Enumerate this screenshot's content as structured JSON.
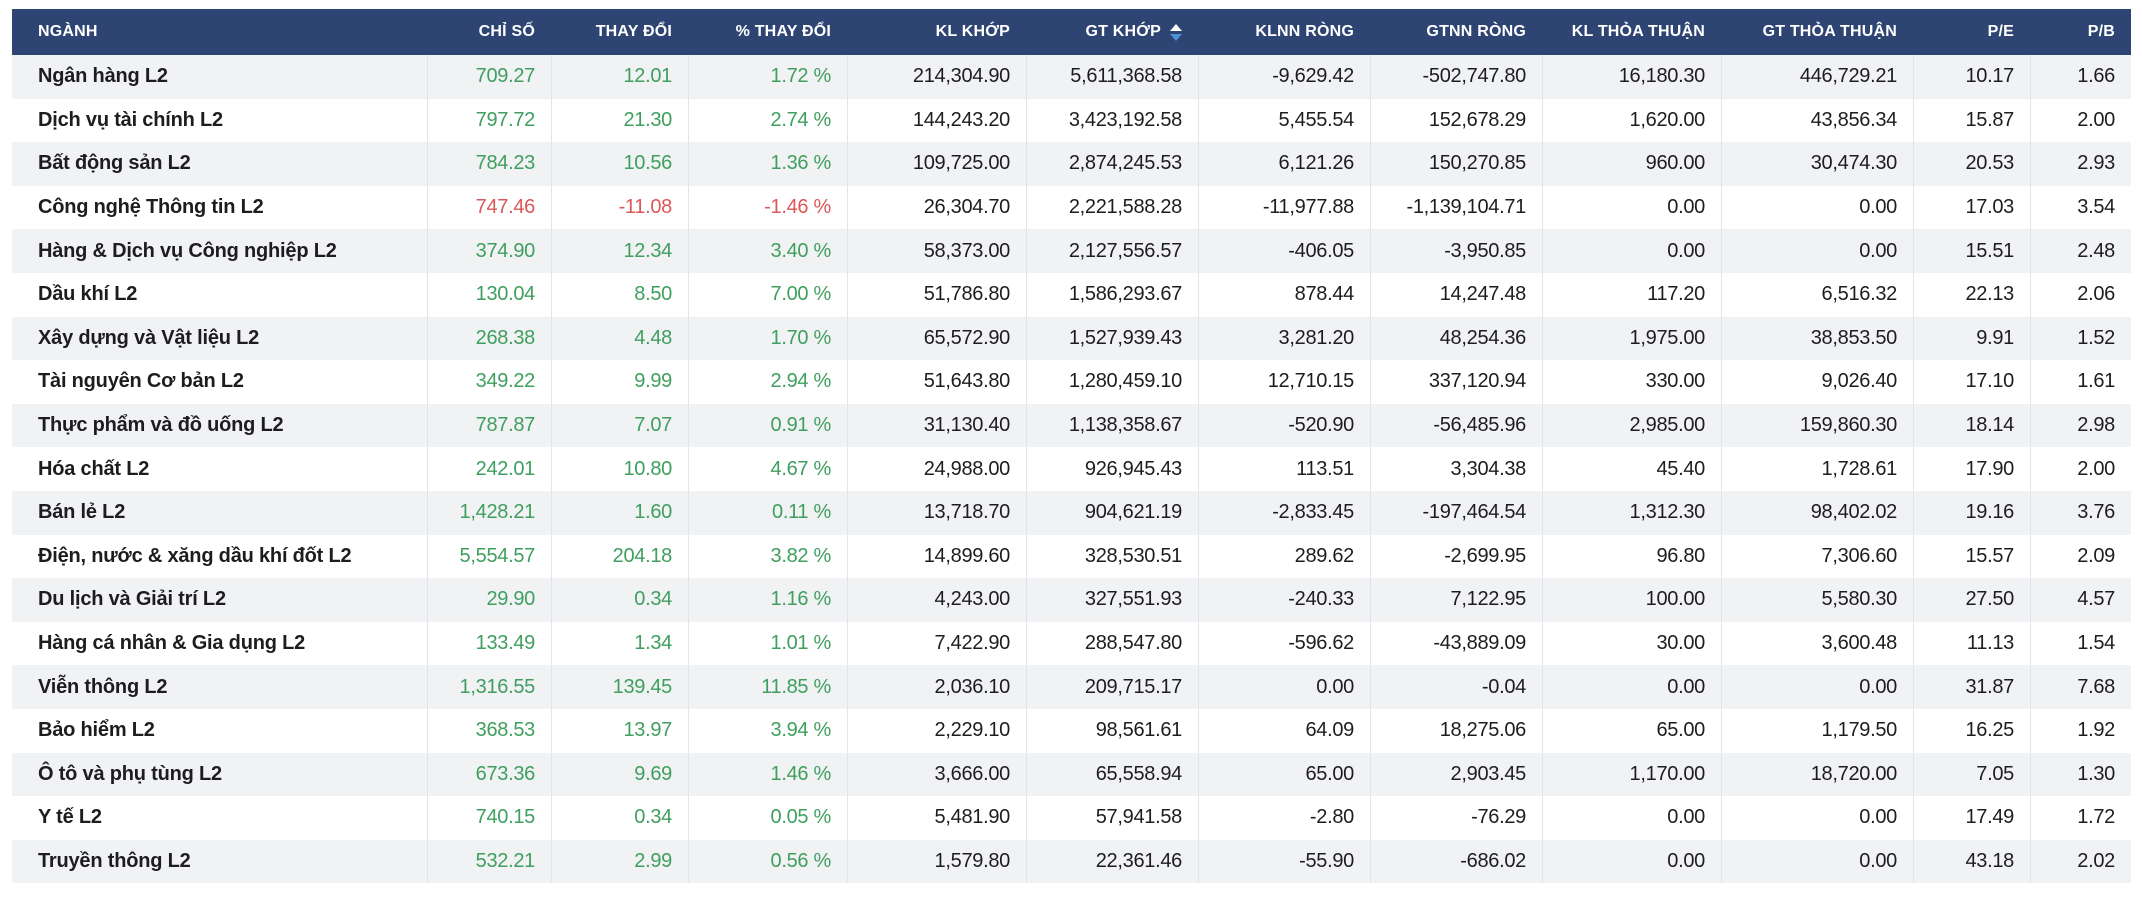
{
  "colors": {
    "header_bg": "#2e4573",
    "header_text": "#ffffff",
    "positive": "#3f9f5e",
    "negative": "#dc5858",
    "stripe": "#f1f2f4",
    "separator": "#e3e4e8",
    "text": "#1d1d1f",
    "sort_active": "#4f8fd6",
    "sort_inactive": "#ffffff"
  },
  "sort": {
    "column": "GT KHỚP",
    "direction": "desc",
    "icon": "sort-arrows-icon"
  },
  "table": {
    "columns": [
      {
        "key": "nganh",
        "label": "NGÀNH",
        "align": "left"
      },
      {
        "key": "chi_so",
        "label": "CHỈ SỐ",
        "align": "right"
      },
      {
        "key": "thay_doi",
        "label": "THAY ĐỔI",
        "align": "right"
      },
      {
        "key": "pct_thay_doi",
        "label": "% THAY ĐỔI",
        "align": "right"
      },
      {
        "key": "kl_khop",
        "label": "KL KHỚP",
        "align": "right"
      },
      {
        "key": "gt_khop",
        "label": "GT KHỚP",
        "align": "right",
        "sorted": "desc"
      },
      {
        "key": "klnn_rong",
        "label": "KLNN RÒNG",
        "align": "right"
      },
      {
        "key": "gtnn_rong",
        "label": "GTNN RÒNG",
        "align": "right"
      },
      {
        "key": "kl_thoa_thuan",
        "label": "KL THỎA THUẬN",
        "align": "right"
      },
      {
        "key": "gt_thoa_thuan",
        "label": "GT THỎA THUẬN",
        "align": "right"
      },
      {
        "key": "pe",
        "label": "P/E",
        "align": "right"
      },
      {
        "key": "pb",
        "label": "P/B",
        "align": "right"
      }
    ],
    "rows": [
      {
        "trend": "up",
        "cells": [
          "Ngân hàng L2",
          "709.27",
          "12.01",
          "1.72 %",
          "214,304.90",
          "5,611,368.58",
          "-9,629.42",
          "-502,747.80",
          "16,180.30",
          "446,729.21",
          "10.17",
          "1.66"
        ]
      },
      {
        "trend": "up",
        "cells": [
          "Dịch vụ tài chính L2",
          "797.72",
          "21.30",
          "2.74 %",
          "144,243.20",
          "3,423,192.58",
          "5,455.54",
          "152,678.29",
          "1,620.00",
          "43,856.34",
          "15.87",
          "2.00"
        ]
      },
      {
        "trend": "up",
        "cells": [
          "Bất động sản L2",
          "784.23",
          "10.56",
          "1.36 %",
          "109,725.00",
          "2,874,245.53",
          "6,121.26",
          "150,270.85",
          "960.00",
          "30,474.30",
          "20.53",
          "2.93"
        ]
      },
      {
        "trend": "down",
        "cells": [
          "Công nghệ Thông tin L2",
          "747.46",
          "-11.08",
          "-1.46 %",
          "26,304.70",
          "2,221,588.28",
          "-11,977.88",
          "-1,139,104.71",
          "0.00",
          "0.00",
          "17.03",
          "3.54"
        ]
      },
      {
        "trend": "up",
        "cells": [
          "Hàng & Dịch vụ Công nghiệp L2",
          "374.90",
          "12.34",
          "3.40 %",
          "58,373.00",
          "2,127,556.57",
          "-406.05",
          "-3,950.85",
          "0.00",
          "0.00",
          "15.51",
          "2.48"
        ]
      },
      {
        "trend": "up",
        "cells": [
          "Dầu khí L2",
          "130.04",
          "8.50",
          "7.00 %",
          "51,786.80",
          "1,586,293.67",
          "878.44",
          "14,247.48",
          "117.20",
          "6,516.32",
          "22.13",
          "2.06"
        ]
      },
      {
        "trend": "up",
        "cells": [
          "Xây dựng và Vật liệu L2",
          "268.38",
          "4.48",
          "1.70 %",
          "65,572.90",
          "1,527,939.43",
          "3,281.20",
          "48,254.36",
          "1,975.00",
          "38,853.50",
          "9.91",
          "1.52"
        ]
      },
      {
        "trend": "up",
        "cells": [
          "Tài nguyên Cơ bản L2",
          "349.22",
          "9.99",
          "2.94 %",
          "51,643.80",
          "1,280,459.10",
          "12,710.15",
          "337,120.94",
          "330.00",
          "9,026.40",
          "17.10",
          "1.61"
        ]
      },
      {
        "trend": "up",
        "cells": [
          "Thực phẩm và đồ uống L2",
          "787.87",
          "7.07",
          "0.91 %",
          "31,130.40",
          "1,138,358.67",
          "-520.90",
          "-56,485.96",
          "2,985.00",
          "159,860.30",
          "18.14",
          "2.98"
        ]
      },
      {
        "trend": "up",
        "cells": [
          "Hóa chất L2",
          "242.01",
          "10.80",
          "4.67 %",
          "24,988.00",
          "926,945.43",
          "113.51",
          "3,304.38",
          "45.40",
          "1,728.61",
          "17.90",
          "2.00"
        ]
      },
      {
        "trend": "up",
        "cells": [
          "Bán lẻ L2",
          "1,428.21",
          "1.60",
          "0.11 %",
          "13,718.70",
          "904,621.19",
          "-2,833.45",
          "-197,464.54",
          "1,312.30",
          "98,402.02",
          "19.16",
          "3.76"
        ]
      },
      {
        "trend": "up",
        "cells": [
          "Điện, nước & xăng dầu khí đốt L2",
          "5,554.57",
          "204.18",
          "3.82 %",
          "14,899.60",
          "328,530.51",
          "289.62",
          "-2,699.95",
          "96.80",
          "7,306.60",
          "15.57",
          "2.09"
        ]
      },
      {
        "trend": "up",
        "cells": [
          "Du lịch và Giải trí L2",
          "29.90",
          "0.34",
          "1.16 %",
          "4,243.00",
          "327,551.93",
          "-240.33",
          "7,122.95",
          "100.00",
          "5,580.30",
          "27.50",
          "4.57"
        ]
      },
      {
        "trend": "up",
        "cells": [
          "Hàng cá nhân & Gia dụng L2",
          "133.49",
          "1.34",
          "1.01 %",
          "7,422.90",
          "288,547.80",
          "-596.62",
          "-43,889.09",
          "30.00",
          "3,600.48",
          "11.13",
          "1.54"
        ]
      },
      {
        "trend": "up",
        "cells": [
          "Viễn thông L2",
          "1,316.55",
          "139.45",
          "11.85 %",
          "2,036.10",
          "209,715.17",
          "0.00",
          "-0.04",
          "0.00",
          "0.00",
          "31.87",
          "7.68"
        ]
      },
      {
        "trend": "up",
        "cells": [
          "Bảo hiểm L2",
          "368.53",
          "13.97",
          "3.94 %",
          "2,229.10",
          "98,561.61",
          "64.09",
          "18,275.06",
          "65.00",
          "1,179.50",
          "16.25",
          "1.92"
        ]
      },
      {
        "trend": "up",
        "cells": [
          "Ô tô và phụ tùng L2",
          "673.36",
          "9.69",
          "1.46 %",
          "3,666.00",
          "65,558.94",
          "65.00",
          "2,903.45",
          "1,170.00",
          "18,720.00",
          "7.05",
          "1.30"
        ]
      },
      {
        "trend": "up",
        "cells": [
          "Y tế L2",
          "740.15",
          "0.34",
          "0.05 %",
          "5,481.90",
          "57,941.58",
          "-2.80",
          "-76.29",
          "0.00",
          "0.00",
          "17.49",
          "1.72"
        ]
      },
      {
        "trend": "up",
        "cells": [
          "Truyền thông L2",
          "532.21",
          "2.99",
          "0.56 %",
          "1,579.80",
          "22,361.46",
          "-55.90",
          "-686.02",
          "0.00",
          "0.00",
          "43.18",
          "2.02"
        ]
      }
    ]
  }
}
